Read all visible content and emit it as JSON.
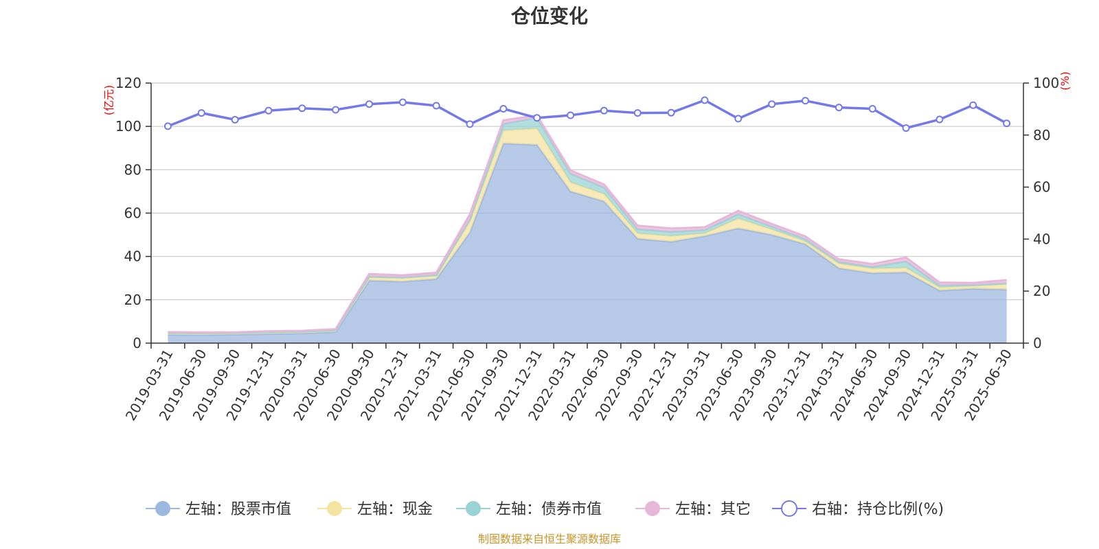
{
  "chart_data": {
    "type": "area",
    "title": "仓位变化",
    "left_unit": "(亿元)",
    "right_unit": "(%)",
    "source": "制图数据来自恒生聚源数据库",
    "categories": [
      "2019-03-31",
      "2019-06-30",
      "2019-09-30",
      "2019-12-31",
      "2020-03-31",
      "2020-06-30",
      "2020-09-30",
      "2020-12-31",
      "2021-03-31",
      "2021-06-30",
      "2021-09-30",
      "2021-12-31",
      "2022-03-31",
      "2022-06-30",
      "2022-09-30",
      "2022-12-31",
      "2023-03-31",
      "2023-06-30",
      "2023-09-30",
      "2023-12-31",
      "2024-03-31",
      "2024-06-30",
      "2024-09-30",
      "2024-12-31",
      "2025-03-31",
      "2025-06-30"
    ],
    "left_axis": {
      "min": 0,
      "max": 120,
      "ticks": [
        0,
        20,
        40,
        60,
        80,
        100,
        120
      ]
    },
    "right_axis": {
      "min": 0,
      "max": 100,
      "ticks": [
        0,
        20,
        40,
        60,
        80,
        100
      ]
    },
    "grid": true,
    "legend_position": "bottom",
    "series": [
      {
        "name": "左轴：股票市值",
        "axis": "left",
        "stack": true,
        "color": "#9db8e0",
        "values": [
          3.9,
          3.8,
          4.0,
          4.3,
          4.6,
          5.2,
          28.9,
          28.4,
          29.6,
          51.0,
          92.1,
          91.5,
          70.0,
          65.4,
          48.2,
          46.8,
          49.4,
          53.0,
          50.0,
          45.7,
          34.6,
          32.3,
          32.7,
          24.3,
          25.1,
          24.8
        ]
      },
      {
        "name": "左轴：现金",
        "axis": "left",
        "stack": true,
        "color": "#f5e3a0",
        "values": [
          0.6,
          0.6,
          0.5,
          0.6,
          0.5,
          0.6,
          1.5,
          1.6,
          1.5,
          5.0,
          6.0,
          7.5,
          4.2,
          3.4,
          2.4,
          2.6,
          1.2,
          4.5,
          2.4,
          1.3,
          2.1,
          2.1,
          2.0,
          1.4,
          1.2,
          2.3
        ]
      },
      {
        "name": "左轴：债券市值",
        "axis": "left",
        "stack": true,
        "color": "#9ad3d3",
        "values": [
          0.2,
          0.2,
          0.2,
          0.2,
          0.2,
          0.2,
          0.3,
          0.3,
          0.3,
          1.0,
          3.0,
          5.0,
          4.0,
          3.0,
          2.0,
          2.0,
          1.6,
          2.0,
          1.4,
          1.0,
          0.8,
          0.8,
          3.0,
          1.0,
          0.5,
          0.5
        ]
      },
      {
        "name": "左轴：其它",
        "axis": "left",
        "stack": true,
        "color": "#e7b7da",
        "values": [
          0.4,
          0.4,
          0.3,
          0.4,
          0.4,
          0.5,
          1.2,
          1.0,
          1.1,
          2.4,
          1.7,
          1.1,
          1.5,
          1.4,
          1.6,
          1.5,
          1.3,
          1.5,
          1.2,
          1.3,
          1.2,
          1.3,
          1.8,
          1.3,
          1.0,
          1.5
        ]
      },
      {
        "name": "右轴：持仓比例(%)",
        "axis": "right",
        "stack": false,
        "color": "#7479ea",
        "values": [
          83.4,
          88.5,
          85.9,
          89.4,
          90.3,
          89.7,
          91.9,
          92.6,
          91.3,
          84.2,
          90.1,
          86.6,
          87.6,
          89.4,
          88.5,
          88.6,
          93.4,
          86.3,
          91.9,
          93.2,
          90.6,
          90.1,
          82.7,
          86.0,
          91.5,
          84.5
        ]
      }
    ]
  }
}
